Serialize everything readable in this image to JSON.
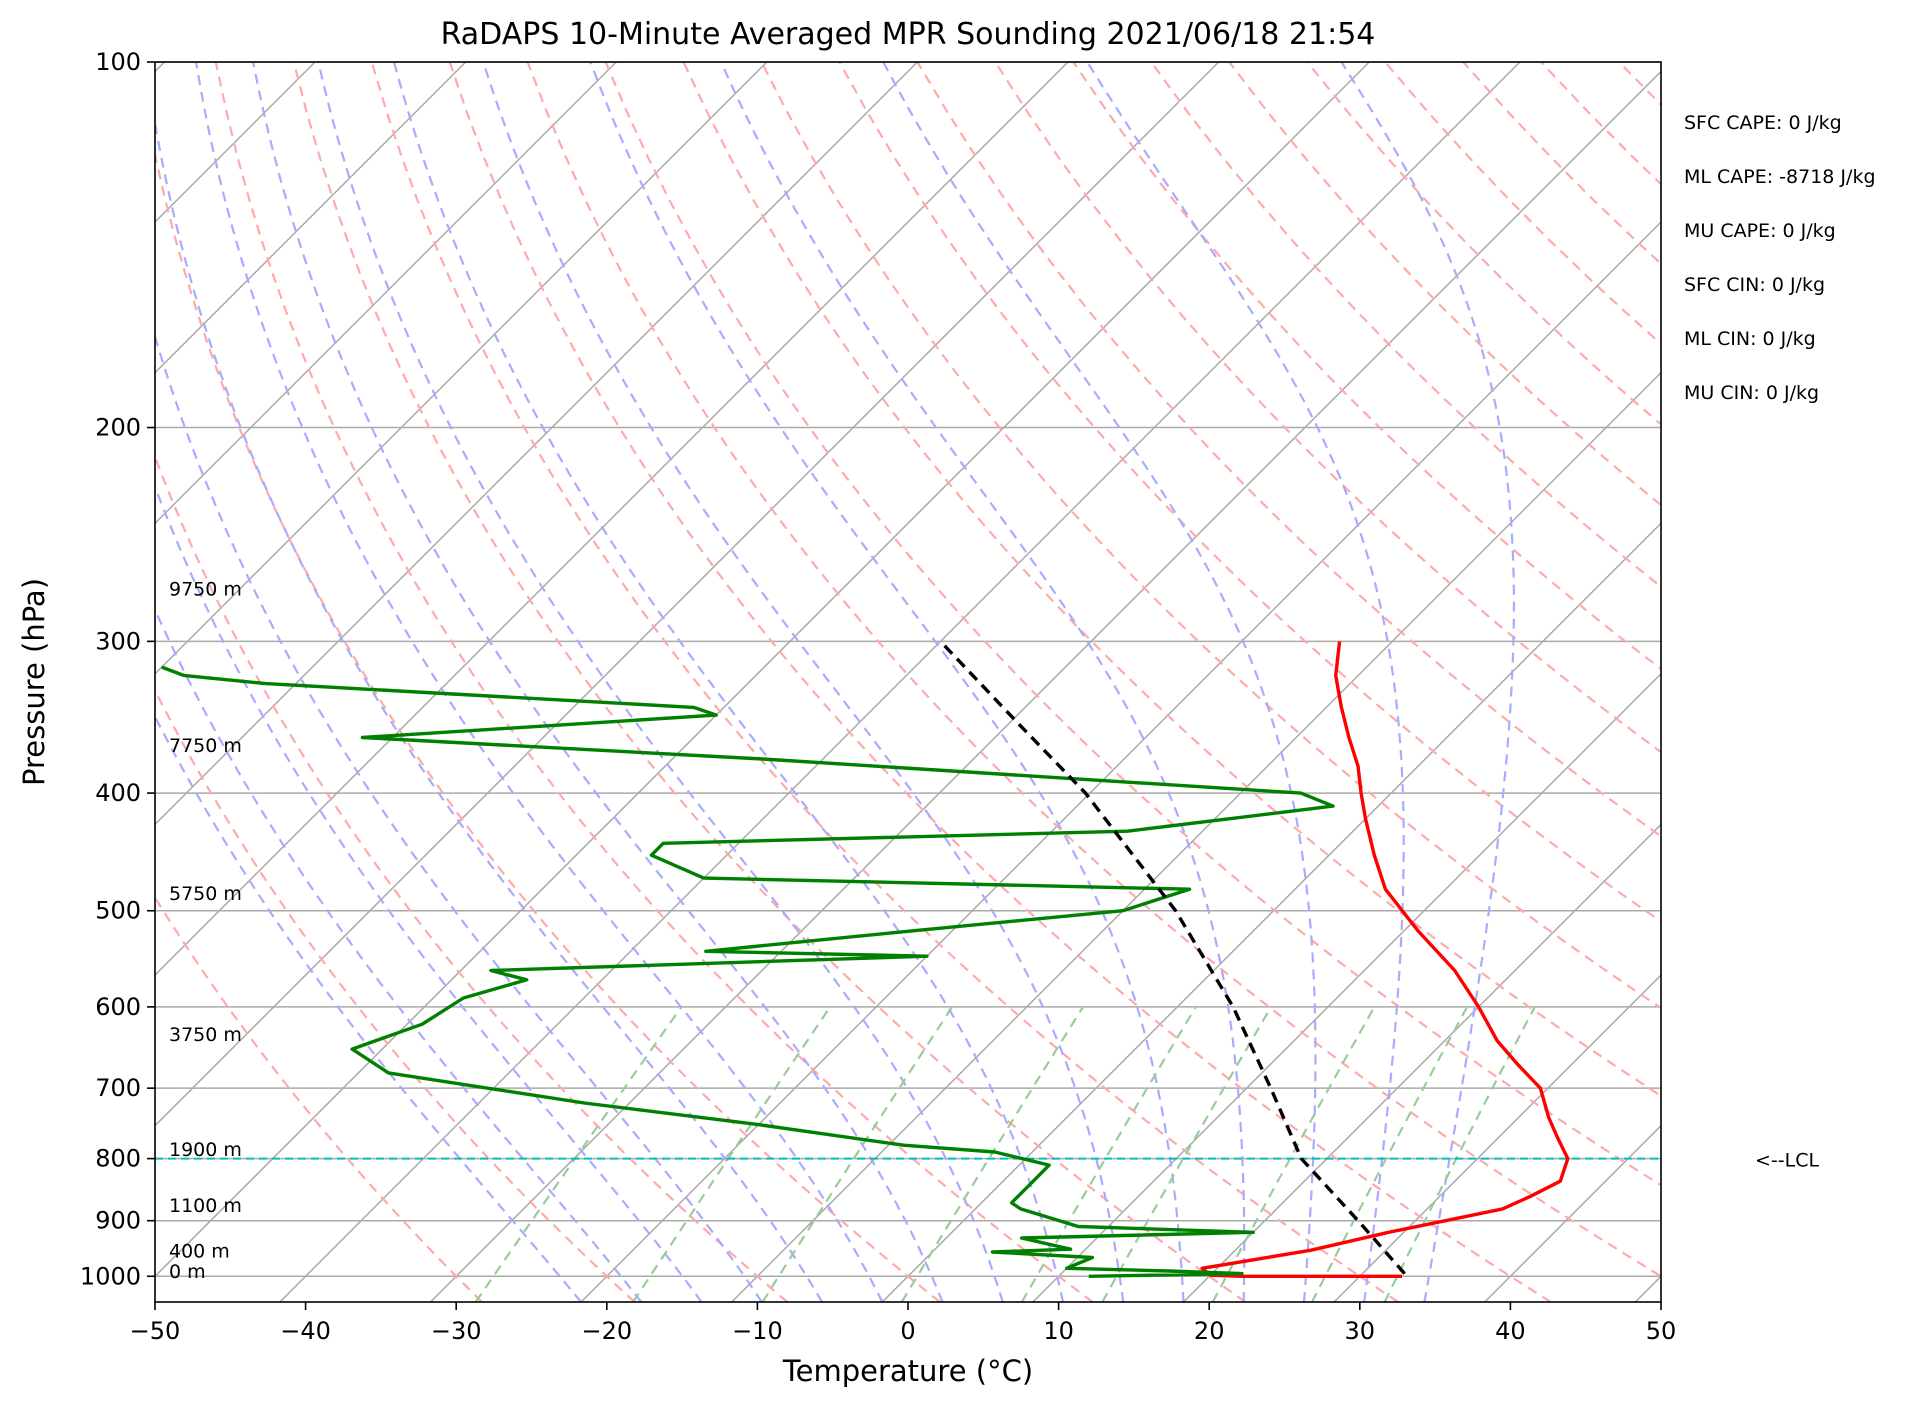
{
  "chart_data": {
    "type": "line",
    "title": "RaDAPS 10-Minute Averaged MPR Sounding 2021/06/18 21:54",
    "xlabel": "Temperature (°C)",
    "ylabel": "Pressure (hPa)",
    "xlim": [
      -50,
      50
    ],
    "ylim": [
      1050,
      100
    ],
    "y_scale": "log",
    "skew": "skew-T",
    "grid": true,
    "x_ticks": [
      "−50",
      "−40",
      "−30",
      "−20",
      "−10",
      "0",
      "10",
      "20",
      "30",
      "40",
      "50"
    ],
    "x_tick_values": [
      -50,
      -40,
      -30,
      -20,
      -10,
      0,
      10,
      20,
      30,
      40,
      50
    ],
    "y_ticks": [
      "100",
      "200",
      "300",
      "400",
      "500",
      "600",
      "700",
      "800",
      "900",
      "1000"
    ],
    "y_tick_values": [
      100,
      200,
      300,
      400,
      500,
      600,
      700,
      800,
      900,
      1000
    ],
    "series": [
      {
        "color": "#ff0000",
        "style": "solid",
        "points": [
          [
            1000,
            32.8
          ],
          [
            1000,
            22.2
          ],
          [
            998,
            20
          ],
          [
            985,
            19
          ],
          [
            952,
            25
          ],
          [
            920,
            29
          ],
          [
            900,
            32
          ],
          [
            880,
            35
          ],
          [
            860,
            36
          ],
          [
            835,
            37
          ],
          [
            800,
            36
          ],
          [
            770,
            34
          ],
          [
            740,
            32
          ],
          [
            700,
            29.5
          ],
          [
            670,
            26.5
          ],
          [
            640,
            23.5
          ],
          [
            600,
            20
          ],
          [
            560,
            16
          ],
          [
            520,
            11
          ],
          [
            480,
            6
          ],
          [
            450,
            3
          ],
          [
            420,
            0
          ],
          [
            400,
            -2
          ],
          [
            380,
            -4
          ],
          [
            360,
            -6.5
          ],
          [
            340,
            -9
          ],
          [
            320,
            -11.5
          ],
          [
            300,
            -13.5
          ]
        ]
      },
      {
        "color": "#008000",
        "style": "solid",
        "points": [
          [
            1000,
            12
          ],
          [
            995,
            22
          ],
          [
            990,
            17
          ],
          [
            985,
            10
          ],
          [
            965,
            11
          ],
          [
            955,
            4
          ],
          [
            950,
            9
          ],
          [
            930,
            5
          ],
          [
            920,
            20
          ],
          [
            910,
            8
          ],
          [
            880,
            3
          ],
          [
            870,
            2
          ],
          [
            840,
            2
          ],
          [
            810,
            2
          ],
          [
            790,
            -2.5
          ],
          [
            780,
            -9
          ],
          [
            750,
            -20
          ],
          [
            720,
            -33
          ],
          [
            680,
            -48
          ],
          [
            650,
            -52
          ],
          [
            620,
            -49
          ],
          [
            590,
            -48
          ],
          [
            570,
            -45
          ],
          [
            560,
            -48
          ],
          [
            545,
            -20
          ],
          [
            540,
            -35
          ],
          [
            520,
            -23
          ],
          [
            500,
            -10
          ],
          [
            480,
            -7
          ],
          [
            470,
            -40
          ],
          [
            450,
            -45
          ],
          [
            440,
            -45
          ],
          [
            430,
            -15
          ],
          [
            410,
            -3
          ],
          [
            400,
            -6
          ],
          [
            375,
            -44
          ],
          [
            360,
            -72
          ],
          [
            345,
            -50
          ],
          [
            340,
            -52
          ],
          [
            325,
            -82
          ],
          [
            320,
            -88
          ],
          [
            315,
            -90
          ]
        ]
      },
      {
        "color": "#000000",
        "style": "dashed",
        "points": [
          [
            995,
            32.8
          ],
          [
            900,
            26.2
          ],
          [
            800,
            18.3
          ],
          [
            700,
            11.6
          ],
          [
            600,
            3.7
          ],
          [
            500,
            -6.5
          ],
          [
            400,
            -20.3
          ],
          [
            350,
            -29.5
          ],
          [
            300,
            -40
          ]
        ]
      }
    ],
    "lcl_pressure": 800,
    "annotations": {
      "lcl": "<--LCL",
      "indices": [
        "SFC CAPE: 0 J/kg",
        "ML CAPE: -8718 J/kg",
        "MU CAPE: 0 J/kg",
        "SFC CIN: 0 J/kg",
        "ML CIN: 0 J/kg",
        "MU CIN: 0 J/kg"
      ],
      "height_labels": [
        {
          "text": "9750 m",
          "pressure": 275
        },
        {
          "text": "7750 m",
          "pressure": 370
        },
        {
          "text": "5750 m",
          "pressure": 490
        },
        {
          "text": "3750 m",
          "pressure": 640
        },
        {
          "text": "1900 m",
          "pressure": 796
        },
        {
          "text": "1100 m",
          "pressure": 885
        },
        {
          "text": "400 m",
          "pressure": 965
        },
        {
          "text": "0 m",
          "pressure": 1003
        }
      ]
    },
    "colors": {
      "isotherm": "#aaaaaa",
      "dry_adiabat": "#ffaaaa",
      "moist_adiabat": "#aaaaff",
      "mixing_ratio": "#99cc99",
      "lcl_line": "#00bfbf"
    }
  }
}
